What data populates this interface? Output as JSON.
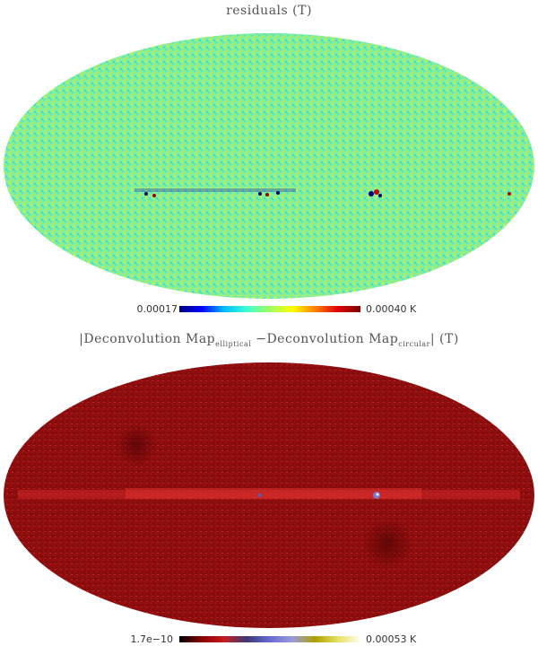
{
  "panels": [
    {
      "title": "residuals (T)",
      "colorbar": {
        "min_label": "0.00017",
        "max_label": "0.00040 K",
        "colors": [
          "#00007f",
          "#0000ff",
          "#00bfff",
          "#40ffd0",
          "#9fff60",
          "#ffff00",
          "#ff8000",
          "#e00000",
          "#7f0000"
        ]
      },
      "base_color": "#7cf0a0",
      "noise_colors": [
        "#66e6b4",
        "#a8f060",
        "#d9f23a",
        "#4fd6d2",
        "#8cf27a",
        "#f0e040"
      ]
    },
    {
      "title_parts": {
        "pre": "|Deconvolution Map",
        "sub1": "elliptical",
        "mid": " −Deconvolution Map",
        "sub2": "circular",
        "post": "| (T)"
      },
      "colorbar": {
        "min_label": "1.7e−10",
        "max_label": "0.00053 K",
        "colors": [
          "#000000",
          "#8b0000",
          "#c41e1e",
          "#3a3a7a",
          "#6a6ad0",
          "#9a9ae0",
          "#b0a000",
          "#e6e060",
          "#fffff0"
        ]
      },
      "base_color": "#8b0d0d",
      "noise_colors": [
        "#a01818",
        "#6e0808",
        "#c42020",
        "#9a1010"
      ]
    }
  ]
}
